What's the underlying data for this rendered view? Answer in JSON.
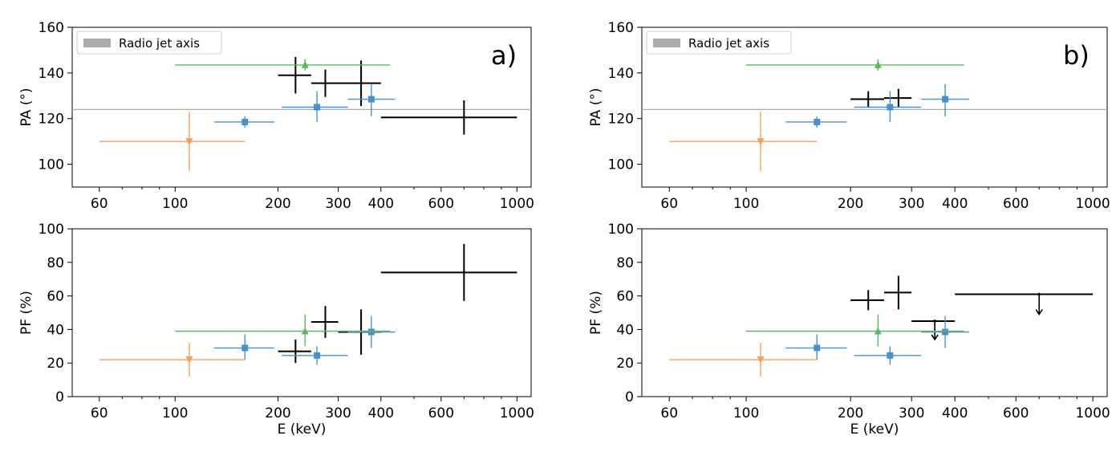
{
  "figure": {
    "panel_letters": [
      "a)",
      "b)"
    ],
    "legend_label": "Radio jet axis",
    "xlabel": "E (keV)"
  },
  "colors": {
    "black": "#000000",
    "blue": "#4a90c8",
    "green": "#5cb85c",
    "orange": "#f5a05a",
    "jet": "#aaaaaa"
  },
  "chart_data": [
    {
      "id": "a-pa",
      "type": "scatter",
      "panel": "a)",
      "title": "",
      "xlabel": "",
      "ylabel": "PA (°)",
      "xscale": "log",
      "xlim": [
        50,
        1100
      ],
      "ylim": [
        90,
        160
      ],
      "xticks": [
        60,
        100,
        200,
        300,
        400,
        600,
        1000
      ],
      "yticks": [
        100,
        120,
        140,
        160
      ],
      "hline": 124,
      "legend": "Radio jet axis",
      "legend_position": "top-left",
      "series": [
        {
          "name": "black",
          "marker": "none",
          "color": "#000000",
          "points": [
            {
              "x": 225,
              "y": 139,
              "xlo": 200,
              "xhi": 250,
              "ylo": 131,
              "yhi": 147
            },
            {
              "x": 275,
              "y": 135.5,
              "xlo": 250,
              "xhi": 300,
              "ylo": 129.5,
              "yhi": 141.5
            },
            {
              "x": 350,
              "y": 135.5,
              "xlo": 300,
              "xhi": 400,
              "ylo": 125.5,
              "yhi": 145.5
            },
            {
              "x": 700,
              "y": 120.5,
              "xlo": 400,
              "xhi": 1000,
              "ylo": 113,
              "yhi": 128
            }
          ]
        },
        {
          "name": "blue",
          "marker": "square",
          "color": "#4a90c8",
          "points": [
            {
              "x": 160,
              "y": 118.5,
              "xlo": 130,
              "xhi": 195,
              "ylo": 116,
              "yhi": 121
            },
            {
              "x": 260,
              "y": 125,
              "xlo": 205,
              "xhi": 320,
              "ylo": 118.5,
              "yhi": 132
            },
            {
              "x": 375,
              "y": 128.5,
              "xlo": 320,
              "xhi": 440,
              "ylo": 121,
              "yhi": 135
            }
          ]
        },
        {
          "name": "green",
          "marker": "triangle-up",
          "color": "#5cb85c",
          "points": [
            {
              "x": 240,
              "y": 143.5,
              "xlo": 100,
              "xhi": 425,
              "ylo": 141,
              "yhi": 146
            }
          ]
        },
        {
          "name": "orange",
          "marker": "triangle-down",
          "color": "#f5a05a",
          "points": [
            {
              "x": 110,
              "y": 110,
              "xlo": 60,
              "xhi": 160,
              "ylo": 97,
              "yhi": 123
            }
          ]
        }
      ]
    },
    {
      "id": "a-pf",
      "type": "scatter",
      "panel": "a)",
      "title": "",
      "xlabel": "E (keV)",
      "ylabel": "PF (%)",
      "xscale": "log",
      "xlim": [
        50,
        1100
      ],
      "ylim": [
        0,
        100
      ],
      "xticks": [
        60,
        100,
        200,
        300,
        400,
        600,
        1000
      ],
      "yticks": [
        0,
        20,
        40,
        60,
        80,
        100
      ],
      "series": [
        {
          "name": "black",
          "marker": "none",
          "color": "#000000",
          "points": [
            {
              "x": 225,
              "y": 27,
              "xlo": 200,
              "xhi": 250,
              "ylo": 20,
              "yhi": 34
            },
            {
              "x": 275,
              "y": 44.5,
              "xlo": 250,
              "xhi": 300,
              "ylo": 35,
              "yhi": 54
            },
            {
              "x": 350,
              "y": 38.5,
              "xlo": 300,
              "xhi": 400,
              "ylo": 25,
              "yhi": 52
            },
            {
              "x": 700,
              "y": 74,
              "xlo": 400,
              "xhi": 1000,
              "ylo": 57,
              "yhi": 91
            }
          ]
        },
        {
          "name": "blue",
          "marker": "square",
          "color": "#4a90c8",
          "points": [
            {
              "x": 160,
              "y": 29,
              "xlo": 130,
              "xhi": 195,
              "ylo": 22,
              "yhi": 37
            },
            {
              "x": 260,
              "y": 24.5,
              "xlo": 205,
              "xhi": 320,
              "ylo": 19,
              "yhi": 30
            },
            {
              "x": 375,
              "y": 38.5,
              "xlo": 320,
              "xhi": 440,
              "ylo": 29,
              "yhi": 48
            }
          ]
        },
        {
          "name": "green",
          "marker": "triangle-up",
          "color": "#5cb85c",
          "points": [
            {
              "x": 240,
              "y": 39,
              "xlo": 100,
              "xhi": 425,
              "ylo": 30,
              "yhi": 49
            }
          ]
        },
        {
          "name": "orange",
          "marker": "triangle-down",
          "color": "#f5a05a",
          "points": [
            {
              "x": 110,
              "y": 22,
              "xlo": 60,
              "xhi": 160,
              "ylo": 12,
              "yhi": 32
            }
          ]
        }
      ]
    },
    {
      "id": "b-pa",
      "type": "scatter",
      "panel": "b)",
      "title": "",
      "xlabel": "",
      "ylabel": "PA (°)",
      "xscale": "log",
      "xlim": [
        50,
        1100
      ],
      "ylim": [
        90,
        160
      ],
      "xticks": [
        60,
        100,
        200,
        300,
        400,
        600,
        1000
      ],
      "yticks": [
        100,
        120,
        140,
        160
      ],
      "hline": 124,
      "legend": "Radio jet axis",
      "legend_position": "top-left",
      "series": [
        {
          "name": "black",
          "marker": "none",
          "color": "#000000",
          "points": [
            {
              "x": 225,
              "y": 128.5,
              "xlo": 200,
              "xhi": 250,
              "ylo": 125,
              "yhi": 132
            },
            {
              "x": 275,
              "y": 129,
              "xlo": 250,
              "xhi": 300,
              "ylo": 125,
              "yhi": 133
            }
          ]
        },
        {
          "name": "blue",
          "marker": "square",
          "color": "#4a90c8",
          "points": [
            {
              "x": 160,
              "y": 118.5,
              "xlo": 130,
              "xhi": 195,
              "ylo": 116,
              "yhi": 121
            },
            {
              "x": 260,
              "y": 125,
              "xlo": 205,
              "xhi": 320,
              "ylo": 118.5,
              "yhi": 132
            },
            {
              "x": 375,
              "y": 128.5,
              "xlo": 320,
              "xhi": 440,
              "ylo": 121,
              "yhi": 135
            }
          ]
        },
        {
          "name": "green",
          "marker": "triangle-up",
          "color": "#5cb85c",
          "points": [
            {
              "x": 240,
              "y": 143.5,
              "xlo": 100,
              "xhi": 425,
              "ylo": 141,
              "yhi": 146
            }
          ]
        },
        {
          "name": "orange",
          "marker": "triangle-down",
          "color": "#f5a05a",
          "points": [
            {
              "x": 110,
              "y": 110,
              "xlo": 60,
              "xhi": 160,
              "ylo": 97,
              "yhi": 123
            }
          ]
        }
      ]
    },
    {
      "id": "b-pf",
      "type": "scatter",
      "panel": "b)",
      "title": "",
      "xlabel": "E (keV)",
      "ylabel": "PF (%)",
      "xscale": "log",
      "xlim": [
        50,
        1100
      ],
      "ylim": [
        0,
        100
      ],
      "xticks": [
        60,
        100,
        200,
        300,
        400,
        600,
        1000
      ],
      "yticks": [
        0,
        20,
        40,
        60,
        80,
        100
      ],
      "series": [
        {
          "name": "black",
          "marker": "none",
          "color": "#000000",
          "points": [
            {
              "x": 225,
              "y": 57.5,
              "xlo": 200,
              "xhi": 250,
              "ylo": 51.5,
              "yhi": 63.5
            },
            {
              "x": 275,
              "y": 62,
              "xlo": 250,
              "xhi": 300,
              "ylo": 52,
              "yhi": 72
            }
          ]
        },
        {
          "name": "black-upper-limits",
          "marker": "upper-limit",
          "color": "#000000",
          "points": [
            {
              "x": 350,
              "y": 45,
              "xlo": 300,
              "xhi": 400,
              "limit_to": 34
            },
            {
              "x": 700,
              "y": 61,
              "xlo": 400,
              "xhi": 1000,
              "limit_to": 49
            }
          ]
        },
        {
          "name": "blue",
          "marker": "square",
          "color": "#4a90c8",
          "points": [
            {
              "x": 160,
              "y": 29,
              "xlo": 130,
              "xhi": 195,
              "ylo": 22,
              "yhi": 37
            },
            {
              "x": 260,
              "y": 24.5,
              "xlo": 205,
              "xhi": 320,
              "ylo": 19,
              "yhi": 30
            },
            {
              "x": 375,
              "y": 38.5,
              "xlo": 320,
              "xhi": 440,
              "ylo": 29,
              "yhi": 48
            }
          ]
        },
        {
          "name": "green",
          "marker": "triangle-up",
          "color": "#5cb85c",
          "points": [
            {
              "x": 240,
              "y": 39,
              "xlo": 100,
              "xhi": 425,
              "ylo": 30,
              "yhi": 49
            }
          ]
        },
        {
          "name": "orange",
          "marker": "triangle-down",
          "color": "#f5a05a",
          "points": [
            {
              "x": 110,
              "y": 22,
              "xlo": 60,
              "xhi": 160,
              "ylo": 12,
              "yhi": 32
            }
          ]
        }
      ]
    }
  ]
}
